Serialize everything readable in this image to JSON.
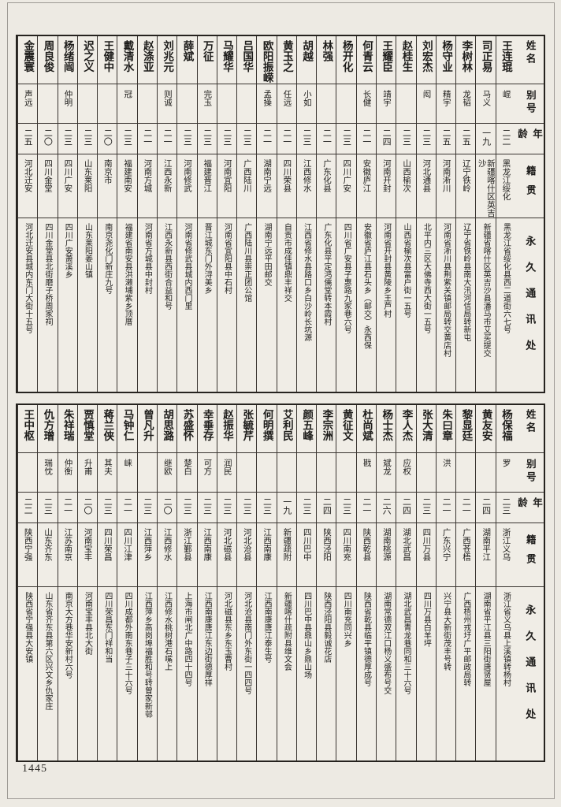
{
  "page_number": "1445",
  "headers": {
    "name": "姓名",
    "alias": "别号",
    "age": "年龄",
    "native": "籍贯",
    "address": "永久通讯处"
  },
  "tables": [
    {
      "entries": [
        {
          "name": "王连琨",
          "alias": "崐",
          "age": "二二",
          "native": "黑龙江绥化",
          "address": "黑龙江省绥化县西二道街六七号"
        },
        {
          "name": "司正易",
          "alias": "马义",
          "age": "一九",
          "native": "新疆喀什区英吉沙",
          "address": "新疆省喀什区英吉沙县潘马市艾买提交"
        },
        {
          "name": "李树林",
          "alias": "龙韬",
          "age": "二五",
          "native": "辽宁铁岭",
          "address": "辽宁省铁岭县南大汛河信局转新屯"
        },
        {
          "name": "杨守业",
          "alias": "精宇",
          "age": "二五",
          "native": "河南淅川",
          "address": "河南省淅川县荆紫关镇邮局转交黄店村"
        },
        {
          "name": "刘宏杰",
          "alias": "闳",
          "age": "二三",
          "native": "河北通县",
          "address": "北平内三区大佛寺西大街一五号"
        },
        {
          "name": "赵桂生",
          "alias": "",
          "age": "二三",
          "native": "山西榆次",
          "address": "山西省榆次县富户街一五号"
        },
        {
          "name": "王耀臣",
          "alias": "靖宇",
          "age": "二四",
          "native": "河南开封",
          "address": "河南省开封县黄陵乡王芦村"
        },
        {
          "name": "何青云",
          "alias": "长健",
          "age": "二一",
          "native": "安徽庐江",
          "address": "安徽省庐江县石头乡（邮交）永西保"
        },
        {
          "name": "杨开化",
          "alias": "",
          "age": "二三",
          "native": "四川广安",
          "address": "四川省广安县子惠路九家巷六号"
        },
        {
          "name": "林强",
          "alias": "",
          "age": "二一",
          "native": "广东化县",
          "address": "广东化县平定鸿儒堂转本霞村"
        },
        {
          "name": "胡越",
          "alias": "小如",
          "age": "二三",
          "native": "江西修水",
          "address": "江西省修水县路口乡白沙岭长坑源"
        },
        {
          "name": "黄玉之",
          "alias": "任远",
          "age": "二一",
          "native": "四川荣县",
          "address": "自贡市成佳镇鼎丰祥交"
        },
        {
          "name": "欧阳振嵘",
          "alias": "孟操",
          "age": "二一",
          "native": "湖南宁远",
          "address": "湖南宁远平田邮交"
        },
        {
          "name": "吕国华",
          "alias": "",
          "age": "二三",
          "native": "广西陆川",
          "address": "广西陆川县崇正团公馆"
        },
        {
          "name": "马耀华",
          "alias": "",
          "age": "二三",
          "native": "河南宜阳",
          "address": "河南省宜阳县中石村"
        },
        {
          "name": "万征",
          "alias": "完玉",
          "age": "二三",
          "native": "福建晋江",
          "address": "晋江城东门外浔美乡"
        },
        {
          "name": "薛斌",
          "alias": "",
          "age": "二三",
          "native": "河南修武",
          "address": "河南省修武县城内西门里"
        },
        {
          "name": "刘兆元",
          "alias": "则诚",
          "age": "二一",
          "native": "江西永新",
          "address": "江西永新县西街合益和号"
        },
        {
          "name": "赵涤亚",
          "alias": "",
          "age": "二一",
          "native": "河南方城",
          "address": "河南省方城县中封村"
        },
        {
          "name": "戴清水",
          "alias": "冠",
          "age": "二三",
          "native": "福建南安",
          "address": "福建省南安县洪濑埔紫乡顶厝"
        },
        {
          "name": "王健中",
          "alias": "",
          "age": "二〇",
          "native": "南京市",
          "address": "南京尧化门新庄九号"
        },
        {
          "name": "迟之义",
          "alias": "",
          "age": "二三",
          "native": "山东莱阳",
          "address": "山东莱阳姜山镇"
        },
        {
          "name": "杨绪闿",
          "alias": "仲明",
          "age": "二三",
          "native": "四川广安",
          "address": "四川广安萧溪乡"
        },
        {
          "name": "周良俊",
          "alias": "",
          "age": "二〇",
          "native": "四川金堂",
          "address": "四川金堂县北街磨子桥周家祠"
        },
        {
          "name": "金震寰",
          "alias": "声远",
          "age": "二五",
          "native": "河北迁安",
          "address": "河北迁安县城内东门大街十五号"
        }
      ]
    },
    {
      "entries": [
        {
          "name": "杨保福",
          "alias": "罗",
          "age": "二三",
          "native": "浙江义乌",
          "address": "浙江省义乌县上溪镇转杨村"
        },
        {
          "name": "黄友安",
          "alias": "",
          "age": "二四",
          "native": "湖南平江",
          "address": "湖南省平江县三阳街唐贤屋"
        },
        {
          "name": "黎显廷",
          "alias": "",
          "age": "二一",
          "native": "广西苍梧",
          "address": "广西梧州戎圩广平邮政局转"
        },
        {
          "name": "朱曰章",
          "alias": "洪",
          "age": "二一",
          "native": "广东兴宁",
          "address": "兴宁县大新街茂丰号转"
        },
        {
          "name": "张大清",
          "alias": "",
          "age": "二三",
          "native": "四川万县",
          "address": "四川万县白羊坪"
        },
        {
          "name": "李人杰",
          "alias": "应权",
          "age": "二四",
          "native": "湖北武昌",
          "address": "湖北武昌青龙巷同和三十六号"
        },
        {
          "name": "杨士杰",
          "alias": "斌龙",
          "age": "二六",
          "native": "湖南桃源",
          "address": "湖南常德双江口杨义盛布号交"
        },
        {
          "name": "杜尚斌",
          "alias": "戡",
          "age": "二一",
          "native": "陕西乾县",
          "address": "陕西省乾县临平镇德厚成号"
        },
        {
          "name": "黄征文",
          "alias": "",
          "age": "二三",
          "native": "四川南充",
          "address": "四川南充同兴乡"
        },
        {
          "name": "李宗洲",
          "alias": "",
          "age": "二四",
          "native": "陕西泾阳",
          "address": "陕西泾阳县毅诚花店"
        },
        {
          "name": "颜五峰",
          "alias": "",
          "age": "二三",
          "native": "四川巴中",
          "address": "四川巴中县鼎山乡鼎山场"
        },
        {
          "name": "艾利民",
          "alias": "",
          "age": "一九",
          "native": "新疆疏附",
          "address": "新疆喀什疏附县维文会"
        },
        {
          "name": "何明撰",
          "alias": "",
          "age": "二三",
          "native": "江西南康",
          "address": "江西南康唐江泰生号"
        },
        {
          "name": "张毓芹",
          "alias": "",
          "age": "二三",
          "native": "河北沧县",
          "address": "河北沧县南门外东街一四四号"
        },
        {
          "name": "赵振华",
          "alias": "润民",
          "age": "二三",
          "native": "河北磁县",
          "address": "河北磁县东乡东玉曹村"
        },
        {
          "name": "幸垂存",
          "alias": "可方",
          "age": "二三",
          "native": "江西南康",
          "address": "江西南康唐江东边街德厚祥"
        },
        {
          "name": "苏盛怀",
          "alias": "楚白",
          "age": "二三",
          "native": "浙江鄞县",
          "address": "上海市闸北广中路四十四号"
        },
        {
          "name": "胡思潞",
          "alias": "继欧",
          "age": "二〇",
          "native": "江西修水",
          "address": "江西修水桃树港石嘴上"
        },
        {
          "name": "曾凡升",
          "alias": "",
          "age": "二三",
          "native": "江西萍乡",
          "address": "江西萍乡高岗埠福胜和号转曾家新邨"
        },
        {
          "name": "马钟仁",
          "alias": "崃",
          "age": "二一",
          "native": "四川江津",
          "address": "四川成都外南东巷子三十六号"
        },
        {
          "name": "蒋兰侠",
          "alias": "其夫",
          "age": "二三",
          "native": "四川荣昌",
          "address": "四川荣昌东门祥和当"
        },
        {
          "name": "贾慎堂",
          "alias": "升甫",
          "age": "二〇",
          "native": "河南宝丰",
          "address": "河南宝丰县北大街"
        },
        {
          "name": "朱祥瑞",
          "alias": "仲衡",
          "age": "二一",
          "native": "江苏南京",
          "address": "南京大方巷华安新村六号"
        },
        {
          "name": "仇方璔",
          "alias": "瑞忱",
          "age": "二三",
          "native": "山东齐东",
          "address": "山东省齐东县第六区兴文乡仇家庄"
        },
        {
          "name": "王中枢",
          "alias": "",
          "age": "二二",
          "native": "陕西宁强",
          "address": "陕西省宁强县大安镇"
        }
      ]
    }
  ]
}
